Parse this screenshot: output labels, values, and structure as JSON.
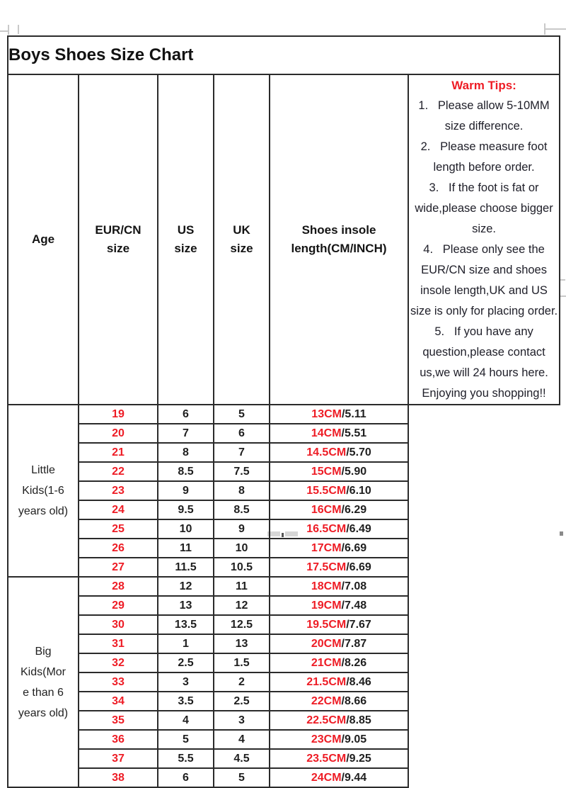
{
  "title": "Boys Shoes Size Chart",
  "table": {
    "headers": {
      "age": [
        "Age"
      ],
      "eur": [
        "EUR/CN",
        "size"
      ],
      "us": [
        "US",
        "size"
      ],
      "uk": [
        "UK",
        "size"
      ],
      "insole": [
        "Shoes insole",
        "length(CM/INCH)"
      ]
    },
    "groups": [
      {
        "label": "Little Kids(1-6 years old)",
        "label_lines": [
          "Little",
          "Kids(1-6",
          "years old)"
        ],
        "rows": 9
      },
      {
        "label": "Big Kids(More than 6 years old)",
        "label_lines": [
          "Big",
          "Kids(Mor",
          "e than 6",
          "years old)"
        ],
        "rows": 11
      }
    ],
    "rows": [
      {
        "eur": "19",
        "us": "6",
        "uk": "5",
        "cm": "13CM",
        "inch": "/5.11"
      },
      {
        "eur": "20",
        "us": "7",
        "uk": "6",
        "cm": "14CM",
        "inch": "/5.51"
      },
      {
        "eur": "21",
        "us": "8",
        "uk": "7",
        "cm": "14.5CM",
        "inch": "/5.70"
      },
      {
        "eur": "22",
        "us": "8.5",
        "uk": "7.5",
        "cm": "15CM",
        "inch": "/5.90"
      },
      {
        "eur": "23",
        "us": "9",
        "uk": "8",
        "cm": "15.5CM",
        "inch": "/6.10"
      },
      {
        "eur": "24",
        "us": "9.5",
        "uk": "8.5",
        "cm": "16CM",
        "inch": "/6.29"
      },
      {
        "eur": "25",
        "us": "10",
        "uk": "9",
        "cm": "16.5CM",
        "inch": "/6.49"
      },
      {
        "eur": "26",
        "us": "11",
        "uk": "10",
        "cm": "17CM",
        "inch": "/6.69"
      },
      {
        "eur": "27",
        "us": "11.5",
        "uk": "10.5",
        "cm": "17.5CM",
        "inch": "/6.69"
      },
      {
        "eur": "28",
        "us": "12",
        "uk": "11",
        "cm": "18CM",
        "inch": "/7.08"
      },
      {
        "eur": "29",
        "us": "13",
        "uk": "12",
        "cm": "19CM",
        "inch": "/7.48"
      },
      {
        "eur": "30",
        "us": "13.5",
        "uk": "12.5",
        "cm": "19.5CM",
        "inch": "/7.67"
      },
      {
        "eur": "31",
        "us": "1",
        "uk": "13",
        "cm": "20CM",
        "inch": "/7.87"
      },
      {
        "eur": "32",
        "us": "2.5",
        "uk": "1.5",
        "cm": "21CM",
        "inch": "/8.26"
      },
      {
        "eur": "33",
        "us": "3",
        "uk": "2",
        "cm": "21.5CM",
        "inch": "/8.46"
      },
      {
        "eur": "34",
        "us": "3.5",
        "uk": "2.5",
        "cm": "22CM",
        "inch": "/8.66"
      },
      {
        "eur": "35",
        "us": "4",
        "uk": "3",
        "cm": "22.5CM",
        "inch": "/8.85"
      },
      {
        "eur": "36",
        "us": "5",
        "uk": "4",
        "cm": "23CM",
        "inch": "/9.05"
      },
      {
        "eur": "37",
        "us": "5.5",
        "uk": "4.5",
        "cm": "23.5CM",
        "inch": "/9.25"
      },
      {
        "eur": "38",
        "us": "6",
        "uk": "5",
        "cm": "24CM",
        "inch": "/9.44"
      }
    ]
  },
  "tips": {
    "heading": "Warm Tips:",
    "items": [
      {
        "num": "1.",
        "text": "Please allow 5-10MM size difference."
      },
      {
        "num": "2.",
        "text": "Please measure foot length before order."
      },
      {
        "num": "3.",
        "text": "If the foot is fat or wide,please choose bigger size."
      },
      {
        "num": "4.",
        "text": "Please only see the EUR/CN size and shoes insole length,UK and US size is only for placing order."
      },
      {
        "num": "5.",
        "text": "If you have any question,please contact us,we will 24 hours here. Enjoying you shopping!!"
      }
    ]
  },
  "colors": {
    "accent_red": "#ee1c25",
    "border": "#2b2b2b",
    "text": "#1c1c1c"
  }
}
